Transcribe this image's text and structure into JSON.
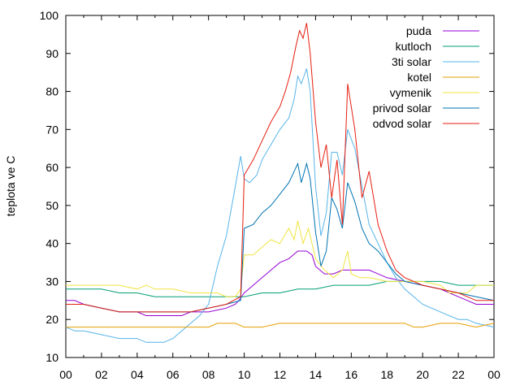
{
  "chart_data": {
    "type": "line",
    "title": "",
    "xlabel": "",
    "ylabel": "teplota ve C",
    "xlim": [
      0,
      24
    ],
    "ylim": [
      10,
      100
    ],
    "x_ticks": [
      "00",
      "02",
      "04",
      "06",
      "08",
      "10",
      "12",
      "14",
      "16",
      "18",
      "20",
      "22",
      "00"
    ],
    "y_ticks": [
      "10",
      "20",
      "30",
      "40",
      "50",
      "60",
      "70",
      "80",
      "90",
      "100"
    ],
    "grid": false,
    "legend_position": "top-right",
    "series": [
      {
        "name": "puda",
        "color": "#9400d3",
        "points": [
          [
            0,
            25
          ],
          [
            0.5,
            25
          ],
          [
            1,
            24
          ],
          [
            2,
            23
          ],
          [
            3,
            22
          ],
          [
            4,
            22
          ],
          [
            4.5,
            21
          ],
          [
            5.5,
            21
          ],
          [
            6,
            21
          ],
          [
            6.5,
            21
          ],
          [
            7,
            22
          ],
          [
            8,
            22
          ],
          [
            9,
            23
          ],
          [
            9.5,
            24
          ],
          [
            9.7,
            25
          ],
          [
            10,
            27
          ],
          [
            10.5,
            29
          ],
          [
            11,
            31
          ],
          [
            11.5,
            33
          ],
          [
            12,
            35
          ],
          [
            12.5,
            36
          ],
          [
            13,
            38
          ],
          [
            13.5,
            38
          ],
          [
            13.8,
            37
          ],
          [
            14,
            34
          ],
          [
            14.5,
            32
          ],
          [
            15,
            32
          ],
          [
            15.5,
            33
          ],
          [
            16,
            33
          ],
          [
            17,
            33
          ],
          [
            17.5,
            32
          ],
          [
            18,
            31
          ],
          [
            19,
            30
          ],
          [
            20,
            29
          ],
          [
            21,
            28
          ],
          [
            21.5,
            27
          ],
          [
            22,
            26
          ],
          [
            22.5,
            25
          ],
          [
            23,
            24
          ],
          [
            24,
            24
          ]
        ]
      },
      {
        "name": "kutloch",
        "color": "#009e73",
        "points": [
          [
            0,
            28
          ],
          [
            0.5,
            28
          ],
          [
            1,
            28
          ],
          [
            2,
            28
          ],
          [
            3,
            27
          ],
          [
            4,
            27
          ],
          [
            5,
            26
          ],
          [
            6,
            26
          ],
          [
            7,
            26
          ],
          [
            8,
            26
          ],
          [
            9,
            26
          ],
          [
            10,
            26
          ],
          [
            11,
            27
          ],
          [
            12,
            27
          ],
          [
            13,
            28
          ],
          [
            14,
            28
          ],
          [
            15,
            29
          ],
          [
            16,
            29
          ],
          [
            17,
            29
          ],
          [
            18,
            30
          ],
          [
            19,
            30
          ],
          [
            20,
            30
          ],
          [
            21,
            30
          ],
          [
            22,
            29
          ],
          [
            23,
            29
          ],
          [
            24,
            29
          ]
        ]
      },
      {
        "name": "3ti solar",
        "color": "#56b4e9",
        "points": [
          [
            0,
            18
          ],
          [
            0.5,
            17
          ],
          [
            1,
            17
          ],
          [
            2,
            16
          ],
          [
            3,
            15
          ],
          [
            4,
            15
          ],
          [
            4.5,
            14
          ],
          [
            5,
            14
          ],
          [
            5.5,
            14
          ],
          [
            6,
            15
          ],
          [
            6.5,
            17
          ],
          [
            7,
            19
          ],
          [
            7.5,
            21
          ],
          [
            8,
            24
          ],
          [
            8.5,
            34
          ],
          [
            9,
            42
          ],
          [
            9.5,
            55
          ],
          [
            9.8,
            63
          ],
          [
            10,
            57
          ],
          [
            10.3,
            56
          ],
          [
            10.7,
            58
          ],
          [
            11,
            62
          ],
          [
            11.5,
            66
          ],
          [
            12,
            70
          ],
          [
            12.5,
            73
          ],
          [
            12.8,
            78
          ],
          [
            13,
            84
          ],
          [
            13.2,
            82
          ],
          [
            13.5,
            86
          ],
          [
            13.7,
            80
          ],
          [
            14,
            55
          ],
          [
            14.3,
            42
          ],
          [
            14.6,
            48
          ],
          [
            14.9,
            64
          ],
          [
            15.2,
            64
          ],
          [
            15.5,
            58
          ],
          [
            15.8,
            70
          ],
          [
            16.2,
            65
          ],
          [
            16.6,
            55
          ],
          [
            17,
            45
          ],
          [
            17.5,
            40
          ],
          [
            18,
            35
          ],
          [
            18.5,
            31
          ],
          [
            19,
            28
          ],
          [
            19.5,
            26
          ],
          [
            20,
            24
          ],
          [
            21,
            22
          ],
          [
            22,
            20
          ],
          [
            22.5,
            20
          ],
          [
            23,
            19
          ],
          [
            24,
            18
          ]
        ]
      },
      {
        "name": "kotel",
        "color": "#e69f00",
        "points": [
          [
            0,
            18
          ],
          [
            1,
            18
          ],
          [
            2,
            18
          ],
          [
            3,
            18
          ],
          [
            4,
            18
          ],
          [
            5,
            18
          ],
          [
            6,
            18
          ],
          [
            7,
            18
          ],
          [
            8,
            18
          ],
          [
            8.5,
            19
          ],
          [
            9,
            19
          ],
          [
            9.5,
            19
          ],
          [
            10,
            18
          ],
          [
            11,
            18
          ],
          [
            12,
            19
          ],
          [
            13,
            19
          ],
          [
            14,
            19
          ],
          [
            15,
            19
          ],
          [
            16,
            19
          ],
          [
            17,
            19
          ],
          [
            18,
            19
          ],
          [
            19,
            19
          ],
          [
            19.5,
            18
          ],
          [
            20,
            18
          ],
          [
            21,
            19
          ],
          [
            22,
            19
          ],
          [
            23,
            18
          ],
          [
            24,
            19
          ]
        ]
      },
      {
        "name": "vymenik",
        "color": "#f0e442",
        "points": [
          [
            0,
            29
          ],
          [
            1,
            29
          ],
          [
            2,
            29
          ],
          [
            3,
            29
          ],
          [
            4,
            28
          ],
          [
            4.5,
            29
          ],
          [
            5,
            28
          ],
          [
            6,
            28
          ],
          [
            7,
            27
          ],
          [
            8,
            27
          ],
          [
            8.5,
            27
          ],
          [
            9,
            26
          ],
          [
            9.5,
            26
          ],
          [
            9.8,
            28
          ],
          [
            10,
            37
          ],
          [
            10.5,
            37
          ],
          [
            11,
            39
          ],
          [
            11.5,
            41
          ],
          [
            12,
            40
          ],
          [
            12.5,
            44
          ],
          [
            12.8,
            41
          ],
          [
            13,
            46
          ],
          [
            13.3,
            40
          ],
          [
            13.6,
            44
          ],
          [
            14,
            36
          ],
          [
            14.5,
            33
          ],
          [
            15,
            31
          ],
          [
            15.5,
            33
          ],
          [
            15.8,
            38
          ],
          [
            16,
            32
          ],
          [
            16.5,
            31
          ],
          [
            17,
            31
          ],
          [
            18,
            30
          ],
          [
            19,
            30
          ],
          [
            20,
            30
          ],
          [
            21,
            29
          ],
          [
            21.5,
            27
          ],
          [
            22,
            27
          ],
          [
            22.5,
            27
          ],
          [
            23,
            29
          ],
          [
            24,
            29
          ]
        ]
      },
      {
        "name": "privod solar",
        "color": "#0072b2",
        "points": [
          [
            0,
            24
          ],
          [
            1,
            24
          ],
          [
            2,
            23
          ],
          [
            3,
            22
          ],
          [
            4,
            22
          ],
          [
            5,
            22
          ],
          [
            6,
            22
          ],
          [
            7,
            22
          ],
          [
            8,
            23
          ],
          [
            9,
            24
          ],
          [
            9.8,
            25
          ],
          [
            10,
            44
          ],
          [
            10.5,
            45
          ],
          [
            11,
            48
          ],
          [
            11.5,
            50
          ],
          [
            12,
            53
          ],
          [
            12.5,
            56
          ],
          [
            12.8,
            59
          ],
          [
            13,
            61
          ],
          [
            13.2,
            56
          ],
          [
            13.5,
            61
          ],
          [
            13.7,
            57
          ],
          [
            14,
            43
          ],
          [
            14.3,
            34
          ],
          [
            14.6,
            38
          ],
          [
            14.9,
            52
          ],
          [
            15.2,
            49
          ],
          [
            15.5,
            44
          ],
          [
            15.8,
            56
          ],
          [
            16.2,
            51
          ],
          [
            16.6,
            44
          ],
          [
            17,
            40
          ],
          [
            17.5,
            38
          ],
          [
            18,
            35
          ],
          [
            18.5,
            32
          ],
          [
            19,
            30
          ],
          [
            20,
            29
          ],
          [
            21,
            28
          ],
          [
            22,
            27
          ],
          [
            23,
            26
          ],
          [
            24,
            25
          ]
        ]
      },
      {
        "name": "odvod solar",
        "color": "#e51e10",
        "points": [
          [
            0,
            24
          ],
          [
            1,
            24
          ],
          [
            2,
            23
          ],
          [
            3,
            22
          ],
          [
            4,
            22
          ],
          [
            5,
            22
          ],
          [
            6,
            22
          ],
          [
            7,
            22
          ],
          [
            8,
            23
          ],
          [
            9,
            24
          ],
          [
            9.8,
            26
          ],
          [
            10,
            58
          ],
          [
            10.5,
            62
          ],
          [
            11,
            67
          ],
          [
            11.5,
            72
          ],
          [
            12,
            76
          ],
          [
            12.3,
            80
          ],
          [
            12.6,
            85
          ],
          [
            12.9,
            92
          ],
          [
            13.1,
            96
          ],
          [
            13.3,
            94
          ],
          [
            13.5,
            98
          ],
          [
            13.7,
            90
          ],
          [
            14,
            72
          ],
          [
            14.3,
            60
          ],
          [
            14.6,
            66
          ],
          [
            14.9,
            52
          ],
          [
            15.2,
            62
          ],
          [
            15.5,
            45
          ],
          [
            15.8,
            82
          ],
          [
            16.2,
            70
          ],
          [
            16.6,
            52
          ],
          [
            17,
            59
          ],
          [
            17.5,
            45
          ],
          [
            18,
            38
          ],
          [
            18.5,
            33
          ],
          [
            19,
            31
          ],
          [
            19.5,
            30
          ],
          [
            20,
            29
          ],
          [
            21,
            28
          ],
          [
            22,
            27
          ],
          [
            22.5,
            26
          ],
          [
            23,
            25
          ],
          [
            24,
            25
          ]
        ]
      }
    ]
  }
}
